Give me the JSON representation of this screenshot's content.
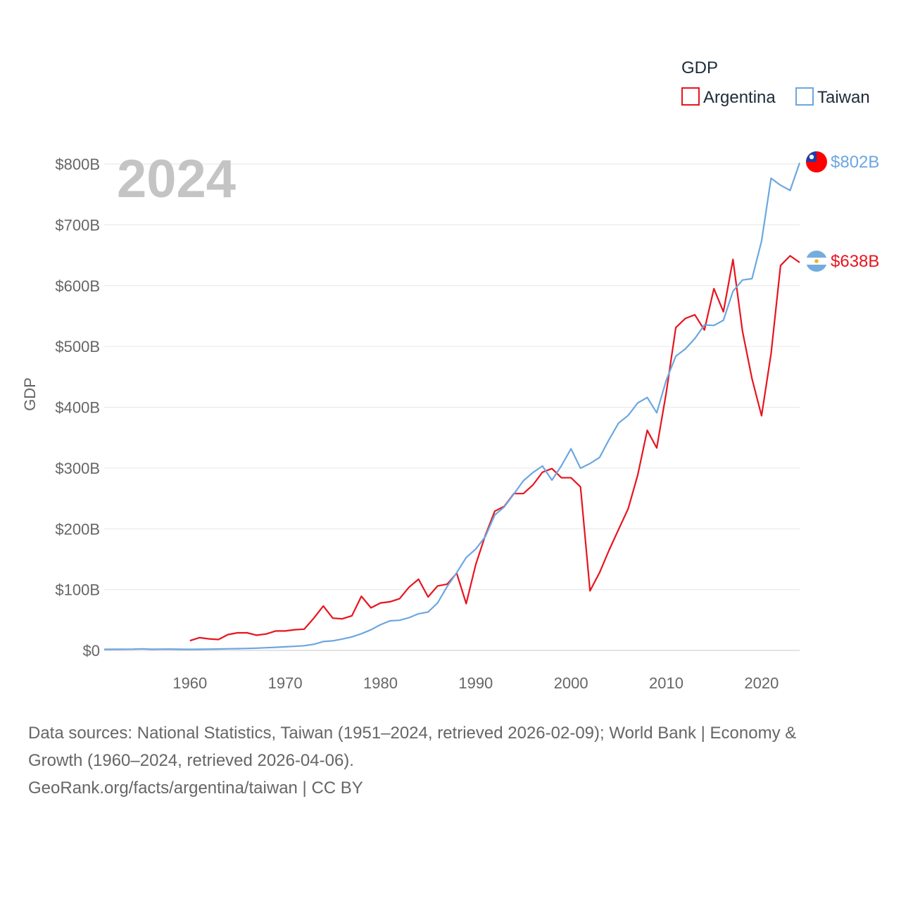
{
  "chart_data": {
    "type": "line",
    "year_label": "2024",
    "ylabel": "GDP",
    "legend_title": "GDP",
    "ylim": [
      0,
      800
    ],
    "xlim": [
      1951,
      2024
    ],
    "y_ticks": [
      {
        "value": 0,
        "label": "$0"
      },
      {
        "value": 100,
        "label": "$100B"
      },
      {
        "value": 200,
        "label": "$200B"
      },
      {
        "value": 300,
        "label": "$300B"
      },
      {
        "value": 400,
        "label": "$400B"
      },
      {
        "value": 500,
        "label": "$500B"
      },
      {
        "value": 600,
        "label": "$600B"
      },
      {
        "value": 700,
        "label": "$700B"
      },
      {
        "value": 800,
        "label": "$800B"
      }
    ],
    "x_ticks": [
      {
        "value": 1960,
        "label": "1960"
      },
      {
        "value": 1970,
        "label": "1970"
      },
      {
        "value": 1980,
        "label": "1980"
      },
      {
        "value": 1990,
        "label": "1990"
      },
      {
        "value": 2000,
        "label": "2000"
      },
      {
        "value": 2010,
        "label": "2010"
      },
      {
        "value": 2020,
        "label": "2020"
      }
    ],
    "series": [
      {
        "name": "Argentina",
        "color": "#e8141e",
        "end_label": "$638B",
        "flag_icon": "argentina-flag-icon",
        "start_year": 1960,
        "values": [
          16,
          21,
          19,
          18,
          26,
          29,
          29,
          25,
          27,
          32,
          32,
          34,
          35,
          53,
          73,
          53,
          52,
          57,
          89,
          70,
          78,
          80,
          85,
          104,
          117,
          88,
          106,
          109,
          127,
          77,
          141,
          189,
          229,
          237,
          258,
          258,
          272,
          293,
          299,
          284,
          284,
          269,
          98,
          128,
          165,
          199,
          233,
          288,
          362,
          333,
          424,
          531,
          546,
          552,
          527,
          595,
          557,
          643,
          525,
          447,
          386,
          488,
          633,
          649,
          638
        ]
      },
      {
        "name": "Taiwan",
        "color": "#6ca7e0",
        "end_label": "$802B",
        "flag_icon": "taiwan-flag-icon",
        "start_year": 1951,
        "values": [
          1.7,
          1.8,
          2.0,
          2.1,
          2.5,
          1.9,
          2.1,
          2.2,
          1.9,
          1.7,
          1.9,
          2.1,
          2.3,
          2.7,
          2.9,
          3.2,
          3.7,
          4.4,
          5.1,
          5.9,
          6.7,
          7.8,
          10.1,
          14.6,
          15.8,
          18.8,
          22.2,
          27.4,
          33.9,
          42.2,
          48.6,
          49.5,
          53.8,
          60.3,
          63.2,
          78.2,
          105.0,
          127.8,
          152.7,
          166.6,
          187.1,
          222.9,
          236.1,
          257.3,
          279.0,
          292.5,
          303.3,
          280.1,
          303.8,
          331.7,
          299.6,
          307.4,
          317.4,
          346.9,
          374.0,
          386.5,
          406.9,
          416.0,
          390.8,
          444.3,
          483.9,
          495.8,
          512.9,
          535.3,
          534.5,
          543.0,
          590.7,
          609.2,
          611.4,
          673.2,
          776.6,
          765.0,
          756.6,
          802.0
        ]
      }
    ]
  },
  "source": {
    "line1": "Data sources: National Statistics, Taiwan (1951–2024, retrieved 2026-02-09); World Bank | Economy &",
    "line2": "Growth (1960–2024, retrieved 2026-04-06).",
    "line3": "GeoRank.org/facts/argentina/taiwan | CC BY"
  }
}
